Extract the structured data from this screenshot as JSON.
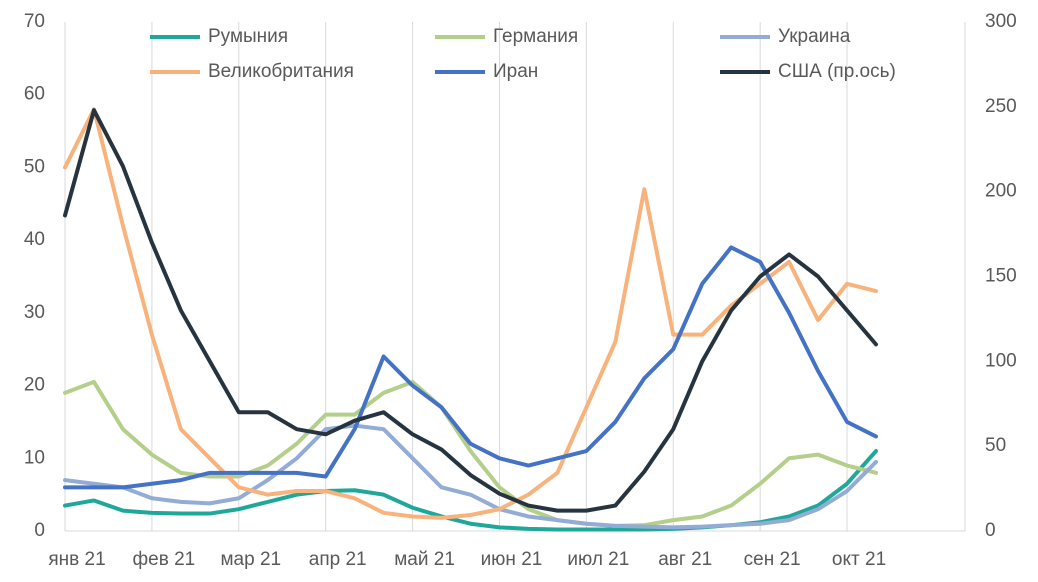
{
  "chart_data": {
    "type": "line",
    "categories": [
      "янв 21",
      null,
      null,
      "фев 21",
      null,
      null,
      "мар 21",
      null,
      null,
      "апр 21",
      null,
      null,
      "май 21",
      null,
      null,
      "июн 21",
      null,
      null,
      "июл 21",
      null,
      null,
      "авг 21",
      null,
      null,
      "сен 21",
      null,
      null,
      "окт 21",
      null
    ],
    "series": [
      {
        "name": "Румыния",
        "color": "#1fa89a",
        "values": [
          3.5,
          4.2,
          2.8,
          2.5,
          2.4,
          2.4,
          3,
          4,
          5,
          5.5,
          5.6,
          5,
          3.2,
          2,
          1,
          0.5,
          0.3,
          0.2,
          0.2,
          0.2,
          0.2,
          0.3,
          0.5,
          0.8,
          1.2,
          2,
          3.5,
          6.5,
          11
        ]
      },
      {
        "name": "Германия",
        "color": "#b4cf8a",
        "values": [
          19,
          20.5,
          14,
          10.5,
          8,
          7.5,
          7.5,
          9,
          12,
          16,
          16,
          19,
          20.5,
          17,
          11,
          6,
          3,
          1.5,
          1,
          0.7,
          0.8,
          1.5,
          2,
          3.5,
          6.5,
          10,
          10.5,
          9,
          8
        ]
      },
      {
        "name": "Украина",
        "color": "#93acd6",
        "values": [
          7,
          6.5,
          6,
          4.5,
          4,
          3.8,
          4.5,
          7,
          10,
          14,
          14.5,
          14,
          10,
          6,
          5,
          3,
          2,
          1.5,
          1,
          0.7,
          0.6,
          0.5,
          0.6,
          0.8,
          1,
          1.5,
          3,
          5.5,
          9.5
        ]
      },
      {
        "name": "Великобритания",
        "color": "#f8b27c",
        "values": [
          50,
          58,
          42,
          27,
          14,
          10,
          6,
          5,
          5.5,
          5.5,
          4.5,
          2.5,
          2,
          1.8,
          2.2,
          3,
          5,
          8,
          17,
          26,
          47,
          27,
          27,
          31,
          34,
          37,
          29,
          34,
          33
        ]
      },
      {
        "name": "Иран",
        "color": "#4472c4",
        "values": [
          6,
          6,
          6,
          6.5,
          7,
          8,
          8,
          8,
          8,
          7.5,
          14,
          24,
          20,
          17,
          12,
          10,
          9,
          10,
          11,
          15,
          21,
          25,
          34,
          39,
          37,
          30,
          22,
          15,
          13
        ]
      },
      {
        "name": "США (пр.ось)",
        "color": "#26343f",
        "axis": "y2",
        "values": [
          186,
          248,
          215,
          170,
          130,
          100,
          70,
          70,
          60,
          57,
          65,
          70,
          57,
          48,
          33,
          22,
          15,
          12,
          12,
          15,
          35,
          60,
          100,
          130,
          150,
          163,
          150,
          130,
          110
        ]
      }
    ],
    "ylim": [
      0,
      70
    ],
    "yticks": [
      0,
      10,
      20,
      30,
      40,
      50,
      60,
      70
    ],
    "y2lim": [
      0,
      300
    ],
    "y2ticks": [
      0,
      50,
      100,
      150,
      200,
      250,
      300
    ],
    "grid": "x",
    "legend": "top"
  }
}
